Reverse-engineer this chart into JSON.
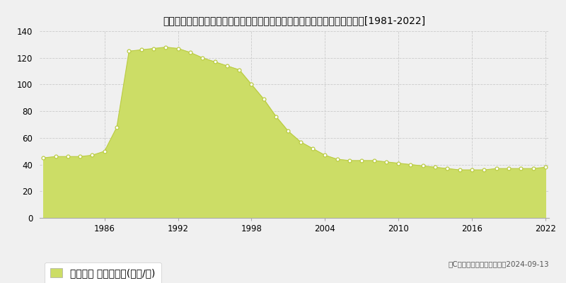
{
  "title": "東京都西多摩郡瑞穂町大字笥根ケ崎字狭山１８８番６　地価公示　地価推移[1981-2022]",
  "years": [
    1981,
    1982,
    1983,
    1984,
    1985,
    1986,
    1987,
    1988,
    1989,
    1990,
    1991,
    1992,
    1993,
    1994,
    1995,
    1996,
    1997,
    1998,
    1999,
    2000,
    2001,
    2002,
    2003,
    2004,
    2005,
    2006,
    2007,
    2008,
    2009,
    2010,
    2011,
    2012,
    2013,
    2014,
    2015,
    2016,
    2017,
    2018,
    2019,
    2020,
    2021,
    2022
  ],
  "values": [
    45,
    46,
    46,
    46,
    47,
    50,
    68,
    125,
    126,
    127,
    128,
    127,
    124,
    120,
    117,
    114,
    111,
    100,
    89,
    76,
    65,
    57,
    52,
    47,
    44,
    43,
    43,
    43,
    42,
    41,
    40,
    39,
    38,
    37,
    36,
    36,
    36,
    37,
    37,
    37,
    37,
    38
  ],
  "fill_color": "#ccdd66",
  "line_color": "#bbcc44",
  "marker_color": "#bbcc44",
  "bg_color": "#f0f0f0",
  "plot_bg_color": "#f0f0f0",
  "grid_color": "#cccccc",
  "yticks": [
    0,
    20,
    40,
    60,
    80,
    100,
    120,
    140
  ],
  "xticks": [
    1986,
    1992,
    1998,
    2004,
    2010,
    2016,
    2022
  ],
  "xlim_min": 1981,
  "xlim_max": 2022,
  "ylim_min": 0,
  "ylim_max": 140,
  "legend_label": "地価公示 平均坊単価(万円/坊)",
  "copyright_text": "（C）土地価格ドットコム　2024-09-13",
  "title_fontsize": 10.5,
  "tick_fontsize": 8.5,
  "legend_fontsize": 9
}
